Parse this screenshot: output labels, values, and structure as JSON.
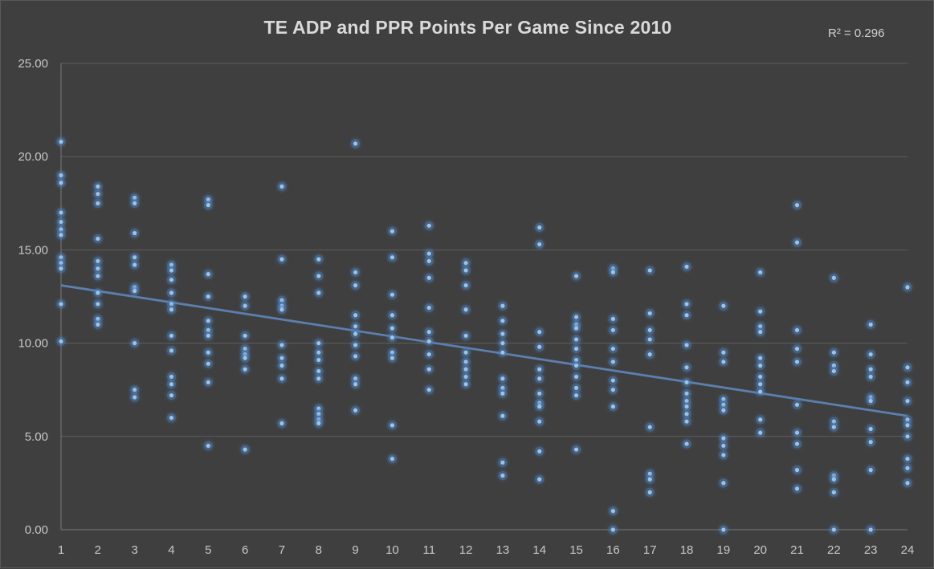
{
  "chart_data": {
    "type": "scatter",
    "title": "TE ADP and PPR Points Per Game Since 2010",
    "annotation": "R² = 0.296",
    "xlabel": "",
    "ylabel": "",
    "xlim": [
      1,
      24
    ],
    "ylim": [
      0,
      25
    ],
    "x_ticks": [
      "1",
      "2",
      "3",
      "4",
      "5",
      "6",
      "7",
      "8",
      "9",
      "10",
      "11",
      "12",
      "13",
      "14",
      "15",
      "16",
      "17",
      "18",
      "19",
      "20",
      "21",
      "22",
      "23",
      "24"
    ],
    "y_ticks": [
      "0.00",
      "5.00",
      "10.00",
      "15.00",
      "20.00",
      "25.00"
    ],
    "grid": true,
    "trendline": {
      "type": "linear",
      "x": [
        1,
        24
      ],
      "y": [
        13.1,
        6.1
      ]
    },
    "colors": {
      "background": "#3f3f3f",
      "points": "#9dc3e6",
      "glow": "#4f81bd",
      "trendline": "#5b7fae",
      "grid": "#5e5e5e"
    },
    "series": [
      {
        "points": [
          [
            1,
            20.8
          ],
          [
            1,
            19.0
          ],
          [
            1,
            18.6
          ],
          [
            1,
            17.0
          ],
          [
            1,
            16.5
          ],
          [
            1,
            16.1
          ],
          [
            1,
            15.8
          ],
          [
            1,
            14.6
          ],
          [
            1,
            14.3
          ],
          [
            1,
            14.0
          ],
          [
            1,
            12.1
          ],
          [
            1,
            10.1
          ],
          [
            2,
            18.4
          ],
          [
            2,
            18.0
          ],
          [
            2,
            17.5
          ],
          [
            2,
            15.6
          ],
          [
            2,
            14.4
          ],
          [
            2,
            14.0
          ],
          [
            2,
            13.6
          ],
          [
            2,
            12.7
          ],
          [
            2,
            12.1
          ],
          [
            2,
            11.3
          ],
          [
            2,
            11.0
          ],
          [
            3,
            17.8
          ],
          [
            3,
            17.5
          ],
          [
            3,
            15.9
          ],
          [
            3,
            14.6
          ],
          [
            3,
            14.2
          ],
          [
            3,
            13.0
          ],
          [
            3,
            12.8
          ],
          [
            3,
            10.0
          ],
          [
            3,
            7.5
          ],
          [
            3,
            7.1
          ],
          [
            4,
            14.2
          ],
          [
            4,
            13.9
          ],
          [
            4,
            13.4
          ],
          [
            4,
            12.7
          ],
          [
            4,
            12.1
          ],
          [
            4,
            11.8
          ],
          [
            4,
            10.4
          ],
          [
            4,
            9.6
          ],
          [
            4,
            8.2
          ],
          [
            4,
            7.8
          ],
          [
            4,
            7.2
          ],
          [
            4,
            6.0
          ],
          [
            5,
            17.7
          ],
          [
            5,
            17.4
          ],
          [
            5,
            13.7
          ],
          [
            5,
            12.5
          ],
          [
            5,
            11.2
          ],
          [
            5,
            10.7
          ],
          [
            5,
            10.4
          ],
          [
            5,
            9.5
          ],
          [
            5,
            8.9
          ],
          [
            5,
            7.9
          ],
          [
            5,
            4.5
          ],
          [
            6,
            12.5
          ],
          [
            6,
            12.0
          ],
          [
            6,
            10.4
          ],
          [
            6,
            9.7
          ],
          [
            6,
            9.4
          ],
          [
            6,
            9.2
          ],
          [
            6,
            8.6
          ],
          [
            6,
            4.3
          ],
          [
            7,
            18.4
          ],
          [
            7,
            14.5
          ],
          [
            7,
            12.3
          ],
          [
            7,
            12.0
          ],
          [
            7,
            11.8
          ],
          [
            7,
            9.9
          ],
          [
            7,
            9.2
          ],
          [
            7,
            8.8
          ],
          [
            7,
            8.1
          ],
          [
            7,
            5.7
          ],
          [
            8,
            14.5
          ],
          [
            8,
            13.6
          ],
          [
            8,
            12.7
          ],
          [
            8,
            10.0
          ],
          [
            8,
            9.5
          ],
          [
            8,
            9.1
          ],
          [
            8,
            8.5
          ],
          [
            8,
            8.1
          ],
          [
            8,
            6.5
          ],
          [
            8,
            6.2
          ],
          [
            8,
            5.9
          ],
          [
            8,
            5.7
          ],
          [
            9,
            20.7
          ],
          [
            9,
            13.8
          ],
          [
            9,
            13.1
          ],
          [
            9,
            11.5
          ],
          [
            9,
            10.9
          ],
          [
            9,
            10.5
          ],
          [
            9,
            9.9
          ],
          [
            9,
            9.3
          ],
          [
            9,
            8.1
          ],
          [
            9,
            7.8
          ],
          [
            9,
            6.4
          ],
          [
            10,
            16.0
          ],
          [
            10,
            14.6
          ],
          [
            10,
            12.6
          ],
          [
            10,
            11.5
          ],
          [
            10,
            10.8
          ],
          [
            10,
            10.3
          ],
          [
            10,
            9.5
          ],
          [
            10,
            9.2
          ],
          [
            10,
            5.6
          ],
          [
            10,
            3.8
          ],
          [
            11,
            16.3
          ],
          [
            11,
            14.8
          ],
          [
            11,
            14.4
          ],
          [
            11,
            13.5
          ],
          [
            11,
            11.9
          ],
          [
            11,
            10.6
          ],
          [
            11,
            10.1
          ],
          [
            11,
            9.4
          ],
          [
            11,
            8.6
          ],
          [
            11,
            7.5
          ],
          [
            12,
            14.3
          ],
          [
            12,
            13.9
          ],
          [
            12,
            13.1
          ],
          [
            12,
            11.8
          ],
          [
            12,
            10.4
          ],
          [
            12,
            9.5
          ],
          [
            12,
            9.0
          ],
          [
            12,
            8.6
          ],
          [
            12,
            8.2
          ],
          [
            12,
            7.8
          ],
          [
            13,
            12.0
          ],
          [
            13,
            11.2
          ],
          [
            13,
            10.5
          ],
          [
            13,
            10.0
          ],
          [
            13,
            9.5
          ],
          [
            13,
            8.1
          ],
          [
            13,
            7.6
          ],
          [
            13,
            7.3
          ],
          [
            13,
            6.1
          ],
          [
            13,
            3.6
          ],
          [
            13,
            2.9
          ],
          [
            14,
            16.2
          ],
          [
            14,
            15.3
          ],
          [
            14,
            10.6
          ],
          [
            14,
            9.8
          ],
          [
            14,
            8.6
          ],
          [
            14,
            8.1
          ],
          [
            14,
            7.3
          ],
          [
            14,
            6.8
          ],
          [
            14,
            6.6
          ],
          [
            14,
            5.8
          ],
          [
            14,
            4.2
          ],
          [
            14,
            2.7
          ],
          [
            15,
            13.6
          ],
          [
            15,
            11.4
          ],
          [
            15,
            11.0
          ],
          [
            15,
            10.8
          ],
          [
            15,
            10.2
          ],
          [
            15,
            9.7
          ],
          [
            15,
            9.1
          ],
          [
            15,
            8.8
          ],
          [
            15,
            8.2
          ],
          [
            15,
            7.6
          ],
          [
            15,
            7.2
          ],
          [
            15,
            4.3
          ],
          [
            16,
            14.0
          ],
          [
            16,
            13.8
          ],
          [
            16,
            11.3
          ],
          [
            16,
            10.7
          ],
          [
            16,
            9.7
          ],
          [
            16,
            9.0
          ],
          [
            16,
            8.0
          ],
          [
            16,
            7.5
          ],
          [
            16,
            6.6
          ],
          [
            16,
            1.0
          ],
          [
            16,
            0.0
          ],
          [
            17,
            13.9
          ],
          [
            17,
            11.6
          ],
          [
            17,
            10.7
          ],
          [
            17,
            10.2
          ],
          [
            17,
            9.4
          ],
          [
            17,
            5.5
          ],
          [
            17,
            3.0
          ],
          [
            17,
            2.7
          ],
          [
            17,
            2.0
          ],
          [
            18,
            14.1
          ],
          [
            18,
            12.1
          ],
          [
            18,
            11.5
          ],
          [
            18,
            9.9
          ],
          [
            18,
            8.7
          ],
          [
            18,
            7.9
          ],
          [
            18,
            7.3
          ],
          [
            18,
            6.9
          ],
          [
            18,
            6.6
          ],
          [
            18,
            6.2
          ],
          [
            18,
            5.8
          ],
          [
            18,
            4.6
          ],
          [
            19,
            12.0
          ],
          [
            19,
            9.5
          ],
          [
            19,
            9.0
          ],
          [
            19,
            7.0
          ],
          [
            19,
            6.7
          ],
          [
            19,
            6.4
          ],
          [
            19,
            4.9
          ],
          [
            19,
            4.5
          ],
          [
            19,
            4.0
          ],
          [
            19,
            2.5
          ],
          [
            19,
            0.0
          ],
          [
            20,
            13.8
          ],
          [
            20,
            11.7
          ],
          [
            20,
            10.9
          ],
          [
            20,
            10.6
          ],
          [
            20,
            9.2
          ],
          [
            20,
            8.8
          ],
          [
            20,
            8.2
          ],
          [
            20,
            7.8
          ],
          [
            20,
            7.4
          ],
          [
            20,
            5.9
          ],
          [
            20,
            5.2
          ],
          [
            21,
            17.4
          ],
          [
            21,
            15.4
          ],
          [
            21,
            10.7
          ],
          [
            21,
            9.7
          ],
          [
            21,
            9.0
          ],
          [
            21,
            6.7
          ],
          [
            21,
            5.2
          ],
          [
            21,
            4.6
          ],
          [
            21,
            3.2
          ],
          [
            21,
            2.2
          ],
          [
            22,
            13.5
          ],
          [
            22,
            9.5
          ],
          [
            22,
            8.8
          ],
          [
            22,
            8.5
          ],
          [
            22,
            5.8
          ],
          [
            22,
            5.5
          ],
          [
            22,
            2.9
          ],
          [
            22,
            2.7
          ],
          [
            22,
            2.0
          ],
          [
            22,
            0.0
          ],
          [
            23,
            11.0
          ],
          [
            23,
            9.4
          ],
          [
            23,
            8.6
          ],
          [
            23,
            8.2
          ],
          [
            23,
            7.1
          ],
          [
            23,
            6.9
          ],
          [
            23,
            5.4
          ],
          [
            23,
            4.7
          ],
          [
            23,
            3.2
          ],
          [
            23,
            0.0
          ],
          [
            24,
            13.0
          ],
          [
            24,
            8.7
          ],
          [
            24,
            7.9
          ],
          [
            24,
            6.9
          ],
          [
            24,
            5.9
          ],
          [
            24,
            5.6
          ],
          [
            24,
            5.0
          ],
          [
            24,
            3.8
          ],
          [
            24,
            3.3
          ],
          [
            24,
            2.5
          ]
        ]
      }
    ]
  }
}
